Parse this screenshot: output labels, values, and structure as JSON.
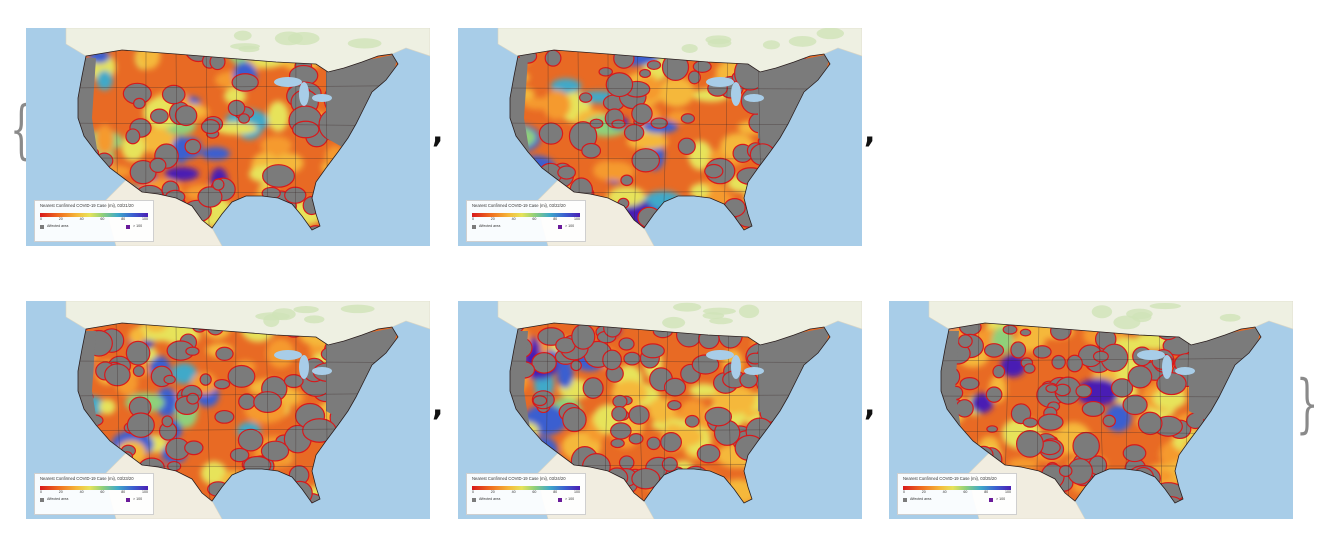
{
  "punctuation": {
    "open_brace": "{",
    "close_brace": "}",
    "separator": ","
  },
  "legend_common": {
    "ticks": [
      "0",
      "20",
      "40",
      "60",
      "80",
      "100"
    ],
    "affected_label": "Affected area",
    "over_label": "> 100",
    "colors": {
      "affected": "#7b7b7b",
      "over": "#6a1b9a",
      "low": "#d7191c",
      "mid": "#e7e35a",
      "high": "#4a1fb4"
    }
  },
  "panels": [
    {
      "legend_title": "Nearest Confirmed COVID-19 Case (mi), 03/21/20"
    },
    {
      "legend_title": "Nearest Confirmed COVID-19 Case (mi), 03/22/20"
    },
    {
      "legend_title": "Nearest Confirmed COVID-19 Case (mi), 03/23/20"
    },
    {
      "legend_title": "Nearest Confirmed COVID-19 Case (mi), 03/24/20"
    },
    {
      "legend_title": "Nearest Confirmed COVID-19 Case (mi), 03/25/20"
    }
  ]
}
